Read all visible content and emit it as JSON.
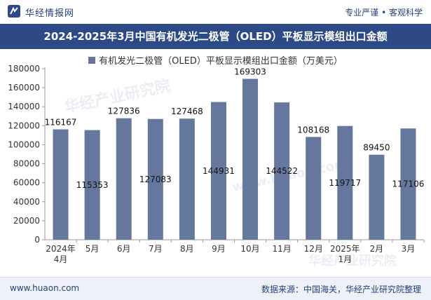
{
  "header": {
    "brand": "华经情报网",
    "tagline": "专业严谨 • 客观科学"
  },
  "title": "2024-2025年3月中国有机发光二极管（OLED）平板显示模组出口金额",
  "footer": {
    "url": "www.huaon.com",
    "source": "数据来源：中国海关，华经产业研究院整理"
  },
  "watermarks": [
    "华经产业研究院",
    "www.huaon.com",
    "华经产业研究院"
  ],
  "colors": {
    "bar": "#66779e",
    "title_bg": "#2d4a86",
    "brand": "#27407a"
  },
  "chart_data": {
    "type": "bar",
    "categories": [
      "2024年\n4月",
      "5月",
      "6月",
      "7月",
      "8月",
      "9月",
      "10月",
      "11月",
      "12月",
      "2025年\n1月",
      "2月",
      "3月"
    ],
    "series": [
      {
        "name": "有机发光二极管（OLED）平板显示模组出口金额（万美元）",
        "values": [
          116167,
          115353,
          127836,
          127083,
          127468,
          144931,
          169303,
          144522,
          108168,
          119717,
          89450,
          117106
        ]
      }
    ],
    "label_inside": [
      false,
      true,
      false,
      true,
      false,
      true,
      false,
      true,
      false,
      true,
      false,
      true
    ],
    "ylim": [
      0,
      180000
    ],
    "yticks": [
      0,
      20000,
      40000,
      60000,
      80000,
      100000,
      120000,
      140000,
      160000,
      180000
    ],
    "xlabel": "",
    "ylabel": "",
    "grid": false,
    "legend": "top"
  }
}
